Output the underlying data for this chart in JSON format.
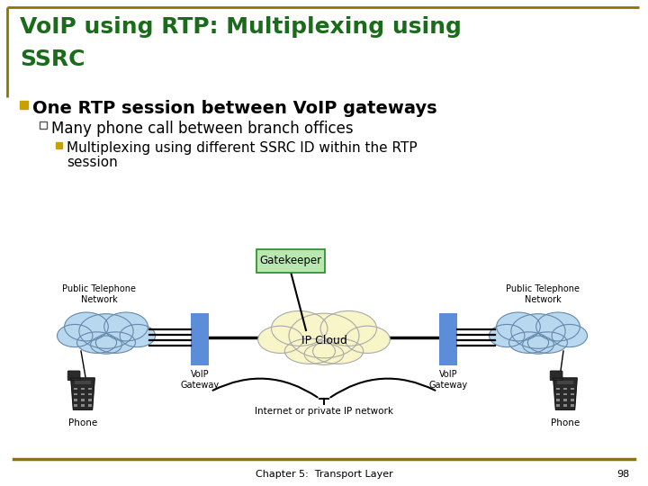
{
  "title_line1": "VoIP using RTP: Multiplexing using",
  "title_line2": "SSRC",
  "bullet1": "One RTP session between VoIP gateways",
  "bullet2": "Many phone call between branch offices",
  "bullet3_line1": "Multiplexing using different SSRC ID within the RTP",
  "bullet3_line2": "session",
  "title_color": "#1a6b1a",
  "bg_color": "#FFFFFF",
  "border_color": "#8B7500",
  "footer_line_color": "#8B7500",
  "footer_text": "Chapter 5:  Transport Layer",
  "footer_page": "98",
  "gatekeeper_box_color": "#b8e8b0",
  "gatekeeper_border_color": "#228B22",
  "gateway_color": "#5b8dd9",
  "cloud_color": "#b8d8f0",
  "ip_cloud_color": "#f8f5c8",
  "bullet1_marker_color": "#c8a000",
  "bullet2_marker_color": "#ffffff",
  "bullet2_marker_edge": "#555555",
  "bullet3_marker_color": "#c8a000"
}
